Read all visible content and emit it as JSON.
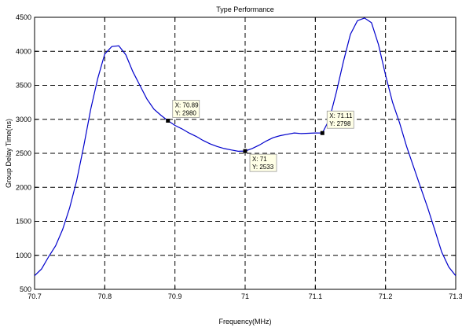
{
  "chart_data": {
    "type": "line",
    "title": "Type Performance",
    "xlabel": "Frequency(MHz)",
    "ylabel": "Group Delay Time(ns)",
    "xlim": [
      70.7,
      71.3
    ],
    "ylim": [
      500,
      4500
    ],
    "x_ticks": [
      70.7,
      70.8,
      70.9,
      71,
      71.1,
      71.2,
      71.3
    ],
    "x_tick_labels": [
      "70.7",
      "70.8",
      "70.9",
      "71",
      "71.1",
      "71.2",
      "71.3"
    ],
    "y_ticks": [
      500,
      1000,
      1500,
      2000,
      2500,
      3000,
      3500,
      4000,
      4500
    ],
    "y_tick_labels": [
      "500",
      "1000",
      "1500",
      "2000",
      "2500",
      "3000",
      "3500",
      "4000",
      "4500"
    ],
    "grid": true,
    "grid_style": "dashed",
    "line_color": "#0000cc",
    "series": [
      {
        "x": [
          70.7,
          70.71,
          70.72,
          70.73,
          70.74,
          70.75,
          70.76,
          70.77,
          70.78,
          70.79,
          70.8,
          70.81,
          70.82,
          70.83,
          70.84,
          70.85,
          70.86,
          70.87,
          70.88,
          70.89,
          70.9,
          70.91,
          70.92,
          70.93,
          70.94,
          70.95,
          70.96,
          70.97,
          70.98,
          70.99,
          71.0,
          71.01,
          71.02,
          71.03,
          71.04,
          71.05,
          71.06,
          71.07,
          71.08,
          71.09,
          71.1,
          71.11,
          71.12,
          71.13,
          71.14,
          71.15,
          71.16,
          71.17,
          71.18,
          71.19,
          71.2,
          71.21,
          71.22,
          71.23,
          71.24,
          71.25,
          71.26,
          71.27,
          71.28,
          71.29,
          71.3
        ],
        "y": [
          700,
          800,
          980,
          1140,
          1380,
          1700,
          2100,
          2600,
          3150,
          3600,
          3960,
          4070,
          4080,
          3950,
          3700,
          3500,
          3300,
          3150,
          3060,
          2980,
          2910,
          2860,
          2800,
          2750,
          2690,
          2640,
          2600,
          2570,
          2550,
          2530,
          2533,
          2570,
          2620,
          2680,
          2730,
          2760,
          2780,
          2800,
          2790,
          2795,
          2800,
          2798,
          3000,
          3400,
          3850,
          4250,
          4450,
          4490,
          4420,
          4100,
          3650,
          3250,
          2950,
          2600,
          2300,
          2000,
          1700,
          1380,
          1050,
          830,
          700
        ]
      }
    ],
    "datatips": [
      {
        "x": 70.89,
        "y": 2980,
        "label_x": "X: 70.89",
        "label_y": "Y: 2980"
      },
      {
        "x": 71,
        "y": 2533,
        "label_x": "X: 71",
        "label_y": "Y: 2533"
      },
      {
        "x": 71.11,
        "y": 2798,
        "label_x": "X: 71.11",
        "label_y": "Y: 2798"
      }
    ]
  }
}
